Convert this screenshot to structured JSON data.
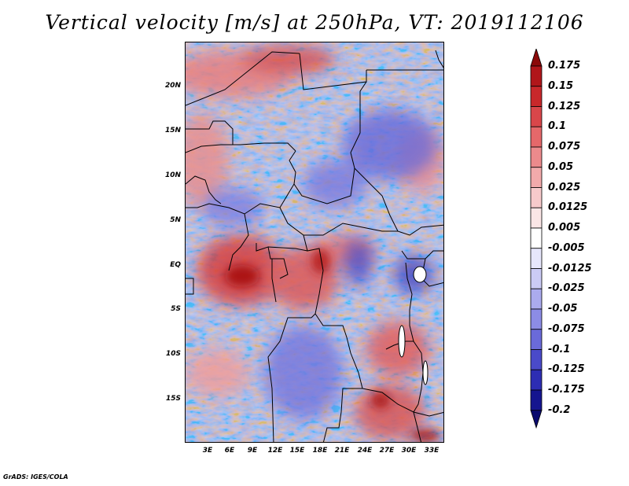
{
  "title": "Vertical velocity [m/s] at 250hPa, VT: 2019112106",
  "footer": "GrADS: IGES/COLA",
  "map": {
    "lat_labels": [
      "20N",
      "15N",
      "10N",
      "5N",
      "EQ",
      "5S",
      "10S",
      "15S"
    ],
    "lon_labels": [
      "3E",
      "6E",
      "9E",
      "12E",
      "15E",
      "18E",
      "21E",
      "24E",
      "27E",
      "30E",
      "33E"
    ]
  },
  "colorbar": {
    "labels": [
      "0.175",
      "0.15",
      "0.125",
      "0.1",
      "0.075",
      "0.05",
      "0.025",
      "0.0125",
      "0.005",
      "-0.005",
      "-0.0125",
      "-0.025",
      "-0.05",
      "-0.075",
      "-0.1",
      "-0.125",
      "-0.175",
      "-0.2"
    ],
    "colors": [
      "#8b0a0a",
      "#b0161a",
      "#c8282b",
      "#d9464a",
      "#e5686a",
      "#ec8a8c",
      "#f2aaab",
      "#f7cacb",
      "#fbe6e6",
      "#ffffff",
      "#e6e6fb",
      "#cbcbf5",
      "#ababee",
      "#8c8ce6",
      "#6a6ad9",
      "#4a4ac9",
      "#2d2db3",
      "#15158f",
      "#0a0a6e"
    ]
  }
}
